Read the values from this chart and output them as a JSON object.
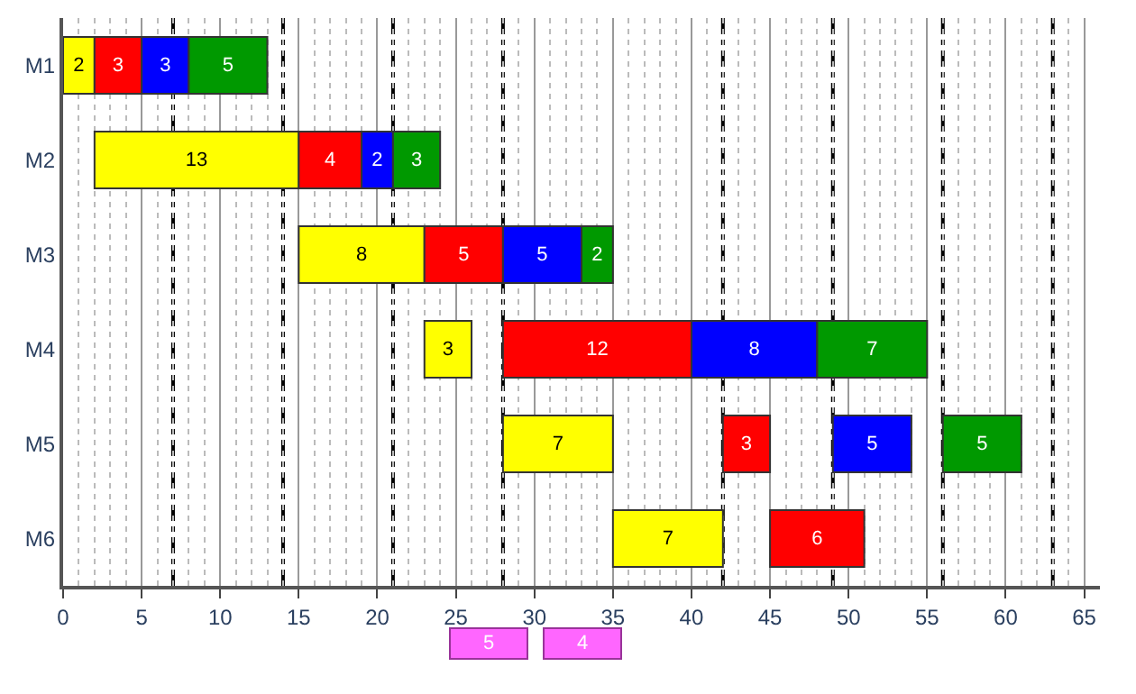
{
  "chart_data": {
    "type": "bar",
    "orientation": "horizontal",
    "categories": [
      "M1",
      "M2",
      "M3",
      "M4",
      "M5",
      "M6"
    ],
    "series": [
      {
        "color": "#ffff00",
        "values": [
          2,
          13,
          8,
          3,
          7,
          7
        ],
        "base": [
          0,
          2,
          15,
          23,
          28,
          35
        ]
      },
      {
        "color": "#ff0000",
        "values": [
          3,
          4,
          5,
          12,
          3,
          6
        ],
        "base": [
          2,
          15,
          23,
          28,
          42,
          45
        ]
      },
      {
        "color": "#0000ff",
        "values": [
          3,
          2,
          5,
          8,
          5,
          null
        ],
        "base": [
          5,
          19,
          28,
          40,
          49,
          null
        ]
      },
      {
        "color": "#009900",
        "values": [
          5,
          3,
          2,
          7,
          5,
          null
        ],
        "base": [
          8,
          21,
          33,
          48,
          56,
          null
        ]
      }
    ],
    "data_labels": true,
    "xlim": [
      0,
      66
    ],
    "xticks": [
      0,
      5,
      10,
      15,
      20,
      25,
      30,
      35,
      40,
      45,
      50,
      55,
      60,
      65
    ],
    "ref_lines": [
      {
        "axis": "x",
        "value": 7,
        "line_style": "dashed",
        "color": "#000000"
      },
      {
        "axis": "x",
        "value": 14,
        "line_style": "dashed",
        "color": "#000000"
      },
      {
        "axis": "x",
        "value": 21,
        "line_style": "dashed",
        "color": "#000000"
      },
      {
        "axis": "x",
        "value": 28,
        "line_style": "dashed",
        "color": "#000000"
      },
      {
        "axis": "x",
        "value": 42,
        "line_style": "dashed",
        "color": "#000000"
      },
      {
        "axis": "x",
        "value": 49,
        "line_style": "dashed",
        "color": "#000000"
      },
      {
        "axis": "x",
        "value": 56,
        "line_style": "dashed",
        "color": "#000000"
      },
      {
        "axis": "x",
        "value": 63,
        "line_style": "dashed",
        "color": "#000000"
      }
    ],
    "annotations": [
      "5",
      "4"
    ],
    "grid": "x"
  }
}
